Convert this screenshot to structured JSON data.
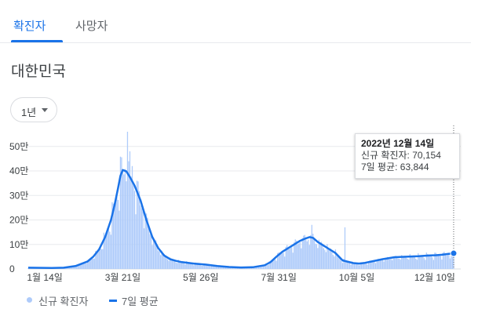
{
  "tabs": [
    {
      "label": "확진자",
      "active": true
    },
    {
      "label": "사망자",
      "active": false
    }
  ],
  "region": "대한민국",
  "range_selector": {
    "label": "1년"
  },
  "tooltip": {
    "date": "2022년 12월 14일",
    "new_cases": "신규 확진자: 70,154",
    "avg": "7일 평균: 63,844"
  },
  "legend": {
    "new_cases": "신규 확진자",
    "avg": "7일 평균"
  },
  "colors": {
    "accent": "#1a73e8",
    "bars": "#aecbfa",
    "grid": "#e8eaed"
  },
  "chart_data": {
    "type": "bar",
    "yticks": [
      {
        "value": 0,
        "label": "0"
      },
      {
        "value": 100000,
        "label": "10만"
      },
      {
        "value": 200000,
        "label": "20만"
      },
      {
        "value": 300000,
        "label": "30만"
      },
      {
        "value": 400000,
        "label": "40만"
      },
      {
        "value": 500000,
        "label": "50만"
      }
    ],
    "ylim": [
      0,
      560000
    ],
    "xrange": [
      0,
      366
    ],
    "xticks": [
      {
        "day": 14,
        "label": "1월 14일"
      },
      {
        "day": 80,
        "label": "3월 21일"
      },
      {
        "day": 146,
        "label": "5월 26일"
      },
      {
        "day": 212,
        "label": "7월 31일"
      },
      {
        "day": 278,
        "label": "10월 5일"
      },
      {
        "day": 344,
        "label": "12월 10일"
      }
    ],
    "series": [
      {
        "name": "7일 평균",
        "type": "line",
        "points": [
          [
            0,
            5000
          ],
          [
            20,
            4000
          ],
          [
            30,
            5000
          ],
          [
            40,
            12000
          ],
          [
            50,
            30000
          ],
          [
            55,
            50000
          ],
          [
            60,
            80000
          ],
          [
            65,
            130000
          ],
          [
            70,
            200000
          ],
          [
            73,
            260000
          ],
          [
            76,
            330000
          ],
          [
            78,
            380000
          ],
          [
            80,
            404000
          ],
          [
            83,
            398000
          ],
          [
            86,
            375000
          ],
          [
            90,
            340000
          ],
          [
            95,
            280000
          ],
          [
            100,
            200000
          ],
          [
            105,
            130000
          ],
          [
            110,
            85000
          ],
          [
            115,
            55000
          ],
          [
            120,
            40000
          ],
          [
            125,
            33000
          ],
          [
            130,
            28000
          ],
          [
            140,
            22000
          ],
          [
            150,
            18000
          ],
          [
            160,
            12000
          ],
          [
            170,
            8000
          ],
          [
            180,
            6000
          ],
          [
            190,
            7000
          ],
          [
            200,
            15000
          ],
          [
            205,
            28000
          ],
          [
            210,
            50000
          ],
          [
            215,
            70000
          ],
          [
            220,
            85000
          ],
          [
            225,
            100000
          ],
          [
            230,
            115000
          ],
          [
            235,
            125000
          ],
          [
            238,
            130000
          ],
          [
            241,
            127000
          ],
          [
            245,
            110000
          ],
          [
            250,
            95000
          ],
          [
            255,
            80000
          ],
          [
            260,
            65000
          ],
          [
            263,
            50000
          ],
          [
            266,
            35000
          ],
          [
            270,
            30000
          ],
          [
            275,
            24000
          ],
          [
            280,
            22000
          ],
          [
            285,
            25000
          ],
          [
            290,
            30000
          ],
          [
            300,
            40000
          ],
          [
            310,
            48000
          ],
          [
            320,
            50000
          ],
          [
            330,
            52000
          ],
          [
            340,
            55000
          ],
          [
            345,
            56000
          ],
          [
            350,
            58000
          ],
          [
            355,
            61000
          ],
          [
            360,
            63844
          ]
        ]
      },
      {
        "name": "신규 확진자",
        "type": "bar",
        "spikes": [
          {
            "day": 84,
            "value": 560000
          },
          {
            "day": 86,
            "value": 480000
          },
          {
            "day": 88,
            "value": 420000
          },
          {
            "day": 92,
            "value": 360000
          },
          {
            "day": 240,
            "value": 180000
          },
          {
            "day": 268,
            "value": 170000
          }
        ],
        "last": {
          "day": 360,
          "value": 70154
        }
      }
    ]
  }
}
